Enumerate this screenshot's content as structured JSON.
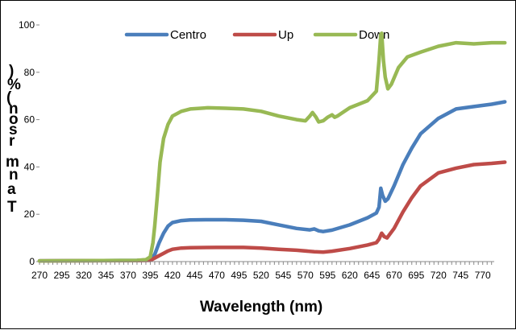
{
  "chart_data": {
    "type": "line",
    "title": "",
    "xlabel": "Wavelength (nm)",
    "ylabel": "Transmitância (%)",
    "ylabel_visible_chars": [
      ")",
      "%",
      "(",
      "n",
      "o",
      "s",
      "r",
      "m",
      "n",
      "a",
      "T"
    ],
    "xlim": [
      270,
      800
    ],
    "ylim": [
      0,
      100
    ],
    "x_ticks": [
      "270",
      "295",
      "320",
      "345",
      "370",
      "395",
      "420",
      "445",
      "470",
      "495",
      "520",
      "545",
      "570",
      "595",
      "620",
      "645",
      "670",
      "695",
      "720",
      "745",
      "770"
    ],
    "y_ticks": [
      "0",
      "20",
      "40",
      "60",
      "80",
      "100"
    ],
    "grid": false,
    "legend_position": "top",
    "series": [
      {
        "name": "Centro",
        "color": "#4a7ebb",
        "x": [
          270,
          380,
          395,
          400,
          405,
          410,
          415,
          420,
          430,
          440,
          460,
          480,
          500,
          520,
          540,
          560,
          575,
          580,
          585,
          590,
          600,
          620,
          640,
          650,
          653,
          655,
          657,
          660,
          663,
          670,
          680,
          690,
          700,
          720,
          740,
          760,
          780,
          795
        ],
        "values": [
          0.3,
          0.5,
          0.8,
          3,
          8,
          12,
          15,
          16.5,
          17.3,
          17.6,
          17.7,
          17.7,
          17.5,
          17,
          15.5,
          14,
          13.4,
          13.8,
          13,
          12.7,
          13.3,
          15.5,
          18.5,
          20.5,
          23,
          31,
          28,
          25.5,
          26.5,
          32,
          41,
          48,
          54,
          60.5,
          64.5,
          65.5,
          66.5,
          67.5
        ]
      },
      {
        "name": "Up",
        "color": "#be4b48",
        "x": [
          270,
          380,
          395,
          400,
          405,
          410,
          415,
          420,
          430,
          440,
          470,
          500,
          520,
          540,
          560,
          580,
          590,
          600,
          620,
          640,
          650,
          653,
          656,
          659,
          662,
          670,
          680,
          690,
          700,
          720,
          740,
          760,
          780,
          795
        ],
        "values": [
          0.3,
          0.4,
          0.5,
          1.5,
          2.5,
          3.5,
          4.5,
          5.2,
          5.7,
          5.9,
          6,
          6,
          5.7,
          5.2,
          4.8,
          4.2,
          4,
          4.4,
          5.5,
          7,
          8,
          9.5,
          12,
          10.5,
          10,
          14,
          21,
          27,
          32,
          37.5,
          39.5,
          41,
          41.5,
          42
        ]
      },
      {
        "name": "Down",
        "color": "#98b954",
        "x": [
          270,
          380,
          390,
          395,
          398,
          400,
          403,
          406,
          410,
          415,
          420,
          430,
          440,
          460,
          480,
          500,
          520,
          540,
          560,
          570,
          575,
          578,
          582,
          585,
          590,
          595,
          600,
          603,
          606,
          610,
          620,
          640,
          650,
          653,
          655,
          656,
          658,
          660,
          663,
          667,
          675,
          685,
          700,
          720,
          740,
          760,
          780,
          795
        ],
        "values": [
          0.3,
          0.5,
          0.8,
          2,
          8,
          15,
          28,
          42,
          52,
          58,
          61.5,
          63.5,
          64.5,
          65,
          64.8,
          64.5,
          63.5,
          61.5,
          60,
          59.5,
          61.5,
          63,
          61,
          59,
          59.5,
          61,
          62,
          61,
          61.5,
          62.5,
          65,
          68,
          72,
          85,
          96,
          96.5,
          85,
          78,
          73,
          75,
          82,
          86.5,
          88.5,
          91,
          92.5,
          92,
          92.5,
          92.5
        ]
      }
    ]
  }
}
